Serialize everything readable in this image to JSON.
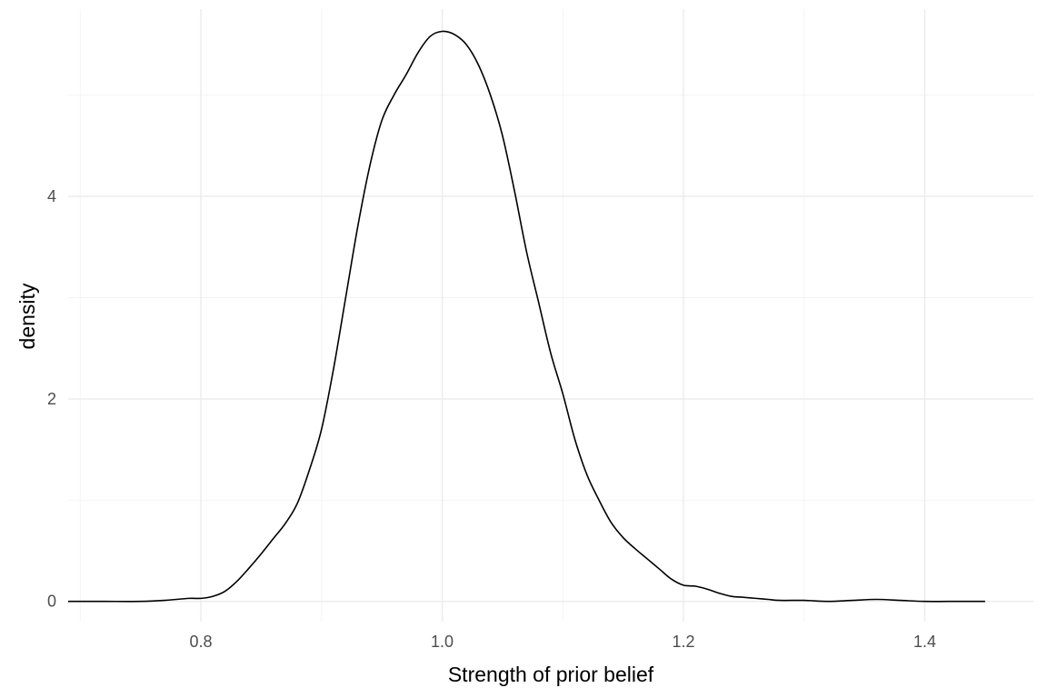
{
  "chart_data": {
    "type": "line",
    "title": "",
    "xlabel": "Strength of prior belief",
    "ylabel": "density",
    "xlim": [
      0.69,
      1.49
    ],
    "ylim": [
      -0.2,
      5.85
    ],
    "x_ticks": [
      0.8,
      1.0,
      1.2,
      1.4
    ],
    "x_tick_labels": [
      "0.8",
      "1.0",
      "1.2",
      "1.4"
    ],
    "y_ticks": [
      0,
      2,
      4
    ],
    "y_tick_labels": [
      "0",
      "2",
      "4"
    ],
    "x_minor_ticks": [
      0.7,
      0.9,
      1.1,
      1.3
    ],
    "y_minor_ticks": [
      1,
      3,
      5
    ],
    "grid": true,
    "legend": "none",
    "line_color": "#000000",
    "series": [
      {
        "x": [
          0.69,
          0.72,
          0.75,
          0.77,
          0.79,
          0.8,
          0.81,
          0.82,
          0.83,
          0.84,
          0.85,
          0.86,
          0.87,
          0.88,
          0.89,
          0.9,
          0.91,
          0.92,
          0.93,
          0.94,
          0.95,
          0.96,
          0.97,
          0.98,
          0.99,
          1.0,
          1.01,
          1.02,
          1.03,
          1.04,
          1.05,
          1.06,
          1.07,
          1.08,
          1.09,
          1.1,
          1.11,
          1.12,
          1.13,
          1.14,
          1.15,
          1.16,
          1.17,
          1.18,
          1.19,
          1.2,
          1.21,
          1.22,
          1.23,
          1.24,
          1.25,
          1.26,
          1.27,
          1.28,
          1.3,
          1.32,
          1.34,
          1.36,
          1.38,
          1.4,
          1.42,
          1.45
        ],
        "y": [
          0.0,
          0.0,
          0.0,
          0.01,
          0.03,
          0.03,
          0.05,
          0.1,
          0.2,
          0.33,
          0.47,
          0.62,
          0.77,
          0.97,
          1.3,
          1.7,
          2.3,
          3.0,
          3.7,
          4.3,
          4.75,
          5.0,
          5.2,
          5.42,
          5.58,
          5.63,
          5.6,
          5.5,
          5.3,
          5.0,
          4.6,
          4.05,
          3.45,
          2.95,
          2.45,
          2.05,
          1.6,
          1.25,
          1.0,
          0.78,
          0.63,
          0.52,
          0.42,
          0.32,
          0.22,
          0.16,
          0.15,
          0.12,
          0.08,
          0.05,
          0.04,
          0.03,
          0.02,
          0.01,
          0.01,
          0.0,
          0.01,
          0.02,
          0.01,
          0.0,
          0.0,
          0.0
        ]
      }
    ]
  }
}
